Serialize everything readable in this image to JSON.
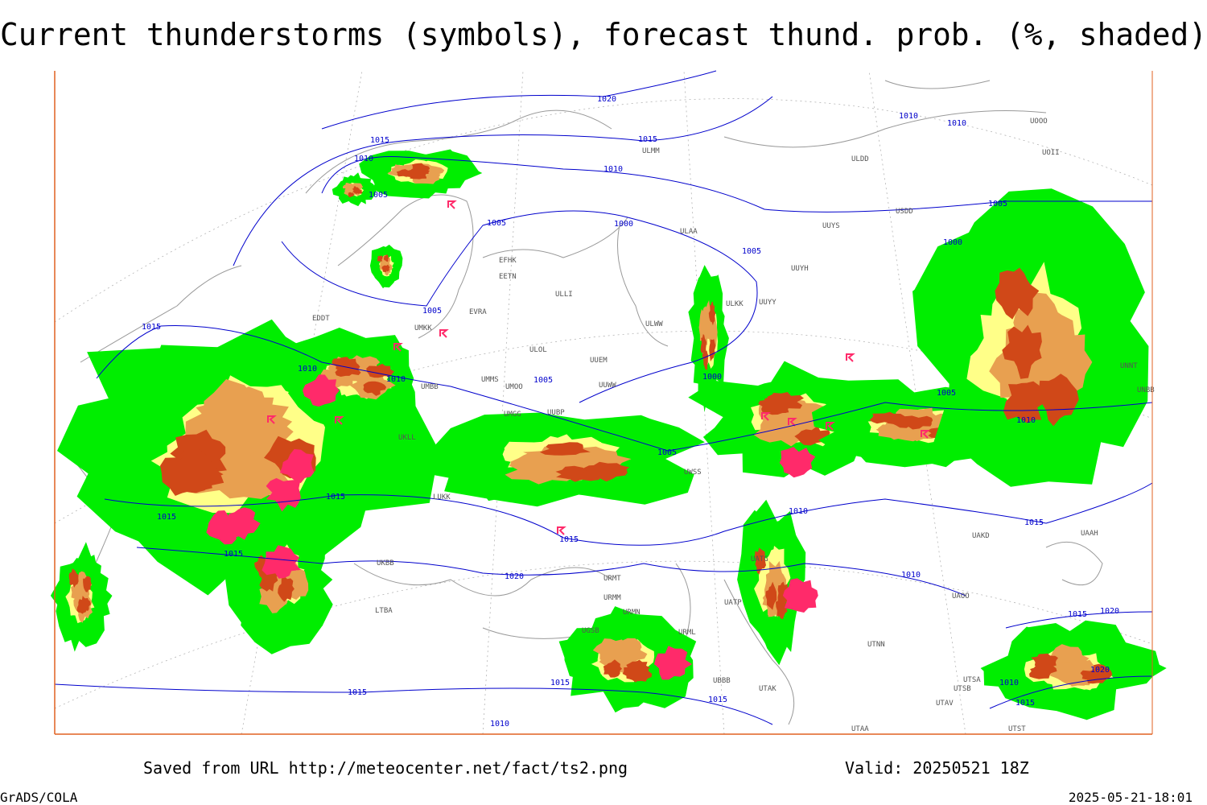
{
  "header": {
    "title": "Current thunderstorms (symbols), forecast thund. prob. (%, shaded)"
  },
  "footer": {
    "source": "Saved from URL http://meteocenter.net/fact/ts2.png",
    "valid": "Valid: 20250521 18Z",
    "software": "GrADS/COLA",
    "timestamp": "2025-05-21-18:01"
  },
  "map": {
    "stations": [
      "UMKK",
      "UMMS",
      "UMOO",
      "UMGG",
      "UUBP",
      "UUEM",
      "UUWW",
      "ULOL",
      "ULLI",
      "EFHK",
      "EETN",
      "EVRA",
      "EDDT",
      "ULAA",
      "ULKK",
      "UUYY",
      "UUYH",
      "UUYS",
      "USDD",
      "ULDD",
      "ULMM",
      "UOOO",
      "UOII",
      "UNNT",
      "UNBB",
      "UAKD",
      "UAAH",
      "UAOO",
      "UTAA",
      "UTAK",
      "UTSA",
      "UTSB",
      "UTAV",
      "UTST",
      "UTNN",
      "URML",
      "URMT",
      "URMM",
      "URMN",
      "UGSB",
      "UBBB",
      "LTBA",
      "UKBB",
      "UKLL",
      "LUKK",
      "UMBB",
      "ULWW",
      "UWSS",
      "UATG",
      "UATP"
    ],
    "isobar_labels": [
      1020,
      1015,
      1015,
      1010,
      1010,
      1005,
      1005,
      1000,
      1005,
      1005,
      1000,
      1010,
      1010,
      1015,
      1005,
      1010,
      1010,
      1005,
      1000,
      1005,
      1005,
      1010,
      1015,
      1015,
      1015,
      1015,
      1020,
      1010,
      1015,
      1010,
      1015,
      1020,
      1020,
      1010,
      1015,
      1015,
      1015,
      1015,
      1010
    ]
  }
}
